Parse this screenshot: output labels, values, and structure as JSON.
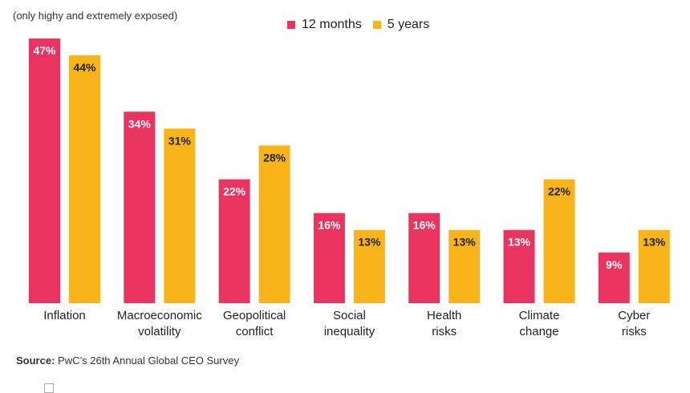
{
  "subtitle": "(only highy and extremely exposed)",
  "legend": {
    "series1": "12 months",
    "series2": "5 years"
  },
  "source": {
    "label": "Source:",
    "text": " PwC’s 26th Annual Global CEO Survey"
  },
  "colors": {
    "series1": "#E9345F",
    "series2": "#F8B418",
    "label_on_pink": "#ffffff",
    "label_on_yellow": "#222222"
  },
  "chart_data": {
    "type": "bar",
    "title": "",
    "xlabel": "",
    "ylabel": "",
    "ylim": [
      0,
      47
    ],
    "unit": "%",
    "categories": [
      [
        "Inflation"
      ],
      [
        "Macroeconomic",
        "volatility"
      ],
      [
        "Geopolitical",
        "conflict"
      ],
      [
        "Social",
        "inequality"
      ],
      [
        "Health",
        "risks"
      ],
      [
        "Climate",
        "change"
      ],
      [
        "Cyber",
        "risks"
      ]
    ],
    "series": [
      {
        "name": "12 months",
        "values": [
          47,
          34,
          22,
          16,
          16,
          13,
          9
        ]
      },
      {
        "name": "5 years",
        "values": [
          44,
          31,
          28,
          13,
          13,
          22,
          13
        ]
      }
    ]
  }
}
